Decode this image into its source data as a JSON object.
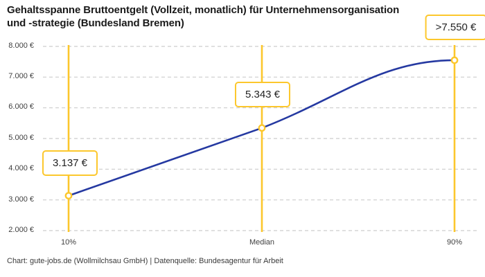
{
  "header": {
    "title": "Gehaltsspanne Bruttoentgelt (Vollzeit, monatlich) für Unternehmensorganisation\nund -strategie (Bundesland Bremen)"
  },
  "chart_data": {
    "type": "line",
    "title": "Gehaltsspanne Bruttoentgelt (Vollzeit, monatlich) für Unternehmensorganisation und -strategie (Bundesland Bremen)",
    "categories": [
      "10%",
      "Median",
      "90%"
    ],
    "values": [
      3137,
      5343,
      7550
    ],
    "point_labels": [
      "3.137 €",
      "5.343 €",
      ">7.550 €"
    ],
    "y_tick_labels": [
      "8.000 €",
      "7.000 €",
      "6.000 €",
      "5.000 €",
      "4.000 €",
      "3.000 €",
      "2.000 €"
    ],
    "ylim": [
      2000,
      8000
    ],
    "y_step": 1000,
    "xlabel": "",
    "ylabel": "",
    "grid": "horizontal-dashed",
    "legend": "none",
    "marker": "open-circle",
    "colors": {
      "accent_yellow": "#fcc72c",
      "line_blue": "#2539a1",
      "grid_gray": "#cccccc"
    }
  },
  "footer": {
    "attribution": "Chart: gute-jobs.de (Wollmilchsau GmbH) | Datenquelle: Bundesagentur für Arbeit"
  }
}
